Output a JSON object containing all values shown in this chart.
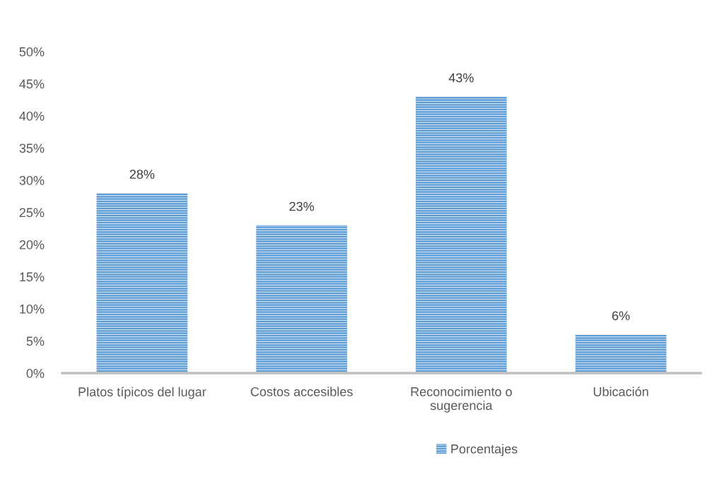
{
  "chart_data": {
    "type": "bar",
    "categories": [
      "Platos típicos del lugar",
      "Costos accesibles",
      "Reconocimiento o sugerencia",
      "Ubicación"
    ],
    "series": [
      {
        "name": "Porcentajes",
        "color": "#5b9bd5",
        "values": [
          28,
          23,
          43,
          6
        ],
        "value_labels": [
          "28%",
          "23%",
          "43%",
          "6%"
        ]
      }
    ],
    "ylim": [
      0,
      50
    ],
    "yticks": [
      {
        "value": 0,
        "label": "0%"
      },
      {
        "value": 5,
        "label": "5%"
      },
      {
        "value": 10,
        "label": "10%"
      },
      {
        "value": 15,
        "label": "15%"
      },
      {
        "value": 20,
        "label": "20%"
      },
      {
        "value": 25,
        "label": "25%"
      },
      {
        "value": 30,
        "label": "30%"
      },
      {
        "value": 35,
        "label": "35%"
      },
      {
        "value": 40,
        "label": "40%"
      },
      {
        "value": 45,
        "label": "45%"
      },
      {
        "value": 50,
        "label": "50%"
      }
    ],
    "grid": false,
    "legend": "bottom"
  }
}
